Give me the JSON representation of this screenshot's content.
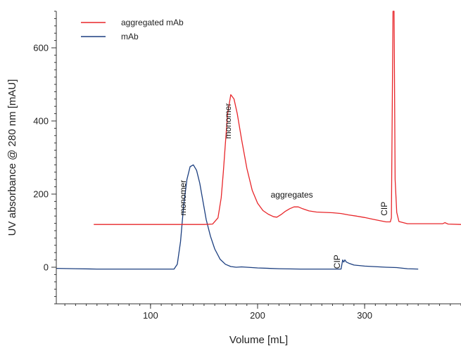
{
  "chart_data": {
    "type": "line",
    "title": "",
    "xlabel": "Volume [mL]",
    "ylabel": "UV absorbance @ 280 nm [mAU]",
    "xlim": [
      12,
      390
    ],
    "ylim": [
      -100,
      700
    ],
    "xticks": [
      100,
      200,
      300
    ],
    "yticks": [
      0,
      200,
      400,
      600
    ],
    "grid": false,
    "legend_position": "top-left",
    "series": [
      {
        "name": "aggregated mAb",
        "color": "#e8262a",
        "x": [
          47,
          60,
          80,
          100,
          120,
          140,
          150,
          158,
          163,
          166,
          168,
          170,
          172,
          175,
          178,
          181,
          185,
          190,
          195,
          200,
          205,
          210,
          215,
          218,
          222,
          226,
          230,
          234,
          238,
          242,
          248,
          255,
          262,
          270,
          278,
          285,
          292,
          300,
          308,
          315,
          320,
          324,
          325,
          326.5,
          327.5,
          328.5,
          330,
          332,
          340,
          360,
          373,
          375,
          378,
          390
        ],
        "y": [
          117,
          117,
          117,
          117,
          117,
          117,
          117,
          118,
          135,
          190,
          260,
          340,
          420,
          472,
          460,
          420,
          350,
          270,
          210,
          175,
          155,
          145,
          138,
          137,
          144,
          153,
          160,
          165,
          165,
          160,
          154,
          151,
          150,
          149,
          147,
          143,
          140,
          136,
          131,
          127,
          124,
          124,
          135,
          700,
          700,
          240,
          150,
          125,
          119,
          119,
          119,
          122,
          118,
          117
        ]
      },
      {
        "name": "mAb",
        "color": "#1c3f80",
        "x": [
          12,
          30,
          50,
          70,
          90,
          110,
          122,
          125,
          128,
          131,
          134,
          137,
          140,
          143,
          146,
          149,
          152,
          156,
          160,
          165,
          170,
          175,
          180,
          185,
          190,
          200,
          220,
          240,
          260,
          270,
          278,
          279.5,
          280.5,
          281.5,
          283,
          286,
          290,
          300,
          320,
          330,
          340,
          350
        ],
        "y": [
          -3,
          -4,
          -5,
          -5,
          -5,
          -5,
          -5,
          8,
          70,
          170,
          240,
          275,
          280,
          265,
          230,
          180,
          130,
          85,
          50,
          22,
          8,
          2,
          0,
          1,
          0,
          -2,
          -4,
          -5,
          -5,
          -5,
          -5,
          20,
          14,
          20,
          14,
          10,
          6,
          3,
          0,
          -1,
          -4,
          -5
        ]
      }
    ],
    "annotations": [
      {
        "text": "monomer",
        "x": 133,
        "y": 190,
        "rotation": -90
      },
      {
        "text": "monomer",
        "x": 175,
        "y": 400,
        "rotation": -90
      },
      {
        "text": "aggregates",
        "x": 232,
        "y": 190,
        "rotation": 0
      },
      {
        "text": "CIP",
        "x": 321,
        "y": 160,
        "rotation": -90
      },
      {
        "text": "CIP",
        "x": 277,
        "y": 15,
        "rotation": -90
      }
    ]
  }
}
